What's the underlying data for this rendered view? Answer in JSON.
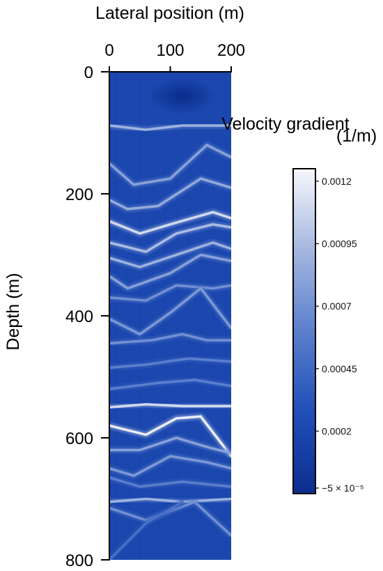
{
  "chart_data": {
    "type": "heatmap",
    "xlabel": "Lateral position (m)",
    "ylabel": "Depth (m)",
    "xlim": [
      0,
      200
    ],
    "ylim": [
      0,
      800
    ],
    "y_inverted": true,
    "x_axis_position": "top",
    "x_ticks": [
      "0",
      "100",
      "200"
    ],
    "y_ticks": [
      "0",
      "200",
      "400",
      "600",
      "800"
    ],
    "colorbar": {
      "label": "Velocity gradient",
      "unit": "(1/m)",
      "range": [
        -5e-05,
        0.00125
      ],
      "ticks": [
        0.0012,
        0.00095,
        0.0007,
        0.00045,
        0.0002,
        -5e-05
      ],
      "tick_labels": [
        "0.0012",
        "0.00095",
        "0.0007",
        "0.00045",
        "0.0002",
        "−5 × 10⁻⁵"
      ],
      "colors": [
        "#0d2d8f",
        "#1f4fb7",
        "#5b7fcc",
        "#a5b7e0",
        "#f6f7fb"
      ]
    },
    "background_value": 0.0002,
    "high_gradient_interfaces": [
      {
        "points": [
          [
            0,
            88
          ],
          [
            60,
            95
          ],
          [
            120,
            88
          ],
          [
            200,
            88
          ]
        ],
        "value": 0.0009
      },
      {
        "points": [
          [
            0,
            150
          ],
          [
            40,
            185
          ],
          [
            100,
            175
          ],
          [
            160,
            120
          ],
          [
            200,
            140
          ]
        ],
        "value": 0.0008
      },
      {
        "points": [
          [
            0,
            210
          ],
          [
            30,
            225
          ],
          [
            80,
            220
          ],
          [
            150,
            175
          ],
          [
            200,
            190
          ]
        ],
        "value": 0.00085
      },
      {
        "points": [
          [
            0,
            245
          ],
          [
            50,
            265
          ],
          [
            100,
            250
          ],
          [
            170,
            230
          ],
          [
            200,
            240
          ]
        ],
        "value": 0.0011
      },
      {
        "points": [
          [
            0,
            280
          ],
          [
            60,
            295
          ],
          [
            110,
            265
          ],
          [
            170,
            250
          ],
          [
            200,
            255
          ]
        ],
        "value": 0.00095
      },
      {
        "points": [
          [
            0,
            305
          ],
          [
            50,
            320
          ],
          [
            110,
            300
          ],
          [
            170,
            280
          ],
          [
            200,
            290
          ]
        ],
        "value": 0.0009
      },
      {
        "points": [
          [
            0,
            335
          ],
          [
            30,
            355
          ],
          [
            100,
            330
          ],
          [
            150,
            300
          ],
          [
            200,
            310
          ]
        ],
        "value": 0.0008
      },
      {
        "points": [
          [
            0,
            370
          ],
          [
            60,
            375
          ],
          [
            110,
            350
          ],
          [
            170,
            355
          ],
          [
            200,
            350
          ]
        ],
        "value": 0.0007
      },
      {
        "points": [
          [
            0,
            405
          ],
          [
            50,
            430
          ],
          [
            100,
            395
          ],
          [
            150,
            355
          ],
          [
            200,
            420
          ]
        ],
        "value": 0.00075
      },
      {
        "points": [
          [
            0,
            445
          ],
          [
            70,
            440
          ],
          [
            120,
            430
          ],
          [
            160,
            440
          ],
          [
            200,
            440
          ]
        ],
        "value": 0.0007
      },
      {
        "points": [
          [
            0,
            485
          ],
          [
            60,
            480
          ],
          [
            130,
            470
          ],
          [
            200,
            475
          ]
        ],
        "value": 0.0006
      },
      {
        "points": [
          [
            0,
            520
          ],
          [
            80,
            510
          ],
          [
            140,
            505
          ],
          [
            200,
            515
          ]
        ],
        "value": 0.0006
      },
      {
        "points": [
          [
            0,
            550
          ],
          [
            60,
            545
          ],
          [
            120,
            548
          ],
          [
            200,
            548
          ]
        ],
        "value": 0.0011
      },
      {
        "points": [
          [
            0,
            580
          ],
          [
            60,
            595
          ],
          [
            110,
            568
          ],
          [
            150,
            565
          ],
          [
            200,
            630
          ]
        ],
        "value": 0.0012
      },
      {
        "points": [
          [
            0,
            620
          ],
          [
            50,
            620
          ],
          [
            110,
            600
          ],
          [
            160,
            615
          ],
          [
            200,
            625
          ]
        ],
        "value": 0.0008
      },
      {
        "points": [
          [
            0,
            650
          ],
          [
            40,
            662
          ],
          [
            100,
            630
          ],
          [
            160,
            640
          ],
          [
            200,
            650
          ]
        ],
        "value": 0.00075
      },
      {
        "points": [
          [
            0,
            665
          ],
          [
            50,
            680
          ],
          [
            120,
            672
          ],
          [
            200,
            680
          ]
        ],
        "value": 0.0006
      },
      {
        "points": [
          [
            0,
            705
          ],
          [
            60,
            700
          ],
          [
            120,
            705
          ],
          [
            200,
            700
          ]
        ],
        "value": 0.0009
      },
      {
        "points": [
          [
            0,
            715
          ],
          [
            60,
            735
          ],
          [
            140,
            705
          ],
          [
            200,
            760
          ]
        ],
        "value": 0.0007
      },
      {
        "points": [
          [
            0,
            800
          ],
          [
            60,
            740
          ],
          [
            120,
            705
          ]
        ],
        "value": 0.0005
      }
    ],
    "low_gradient_zones": [
      {
        "center": [
          120,
          40
        ],
        "radius": [
          55,
          30
        ],
        "value": -5e-05
      }
    ]
  }
}
